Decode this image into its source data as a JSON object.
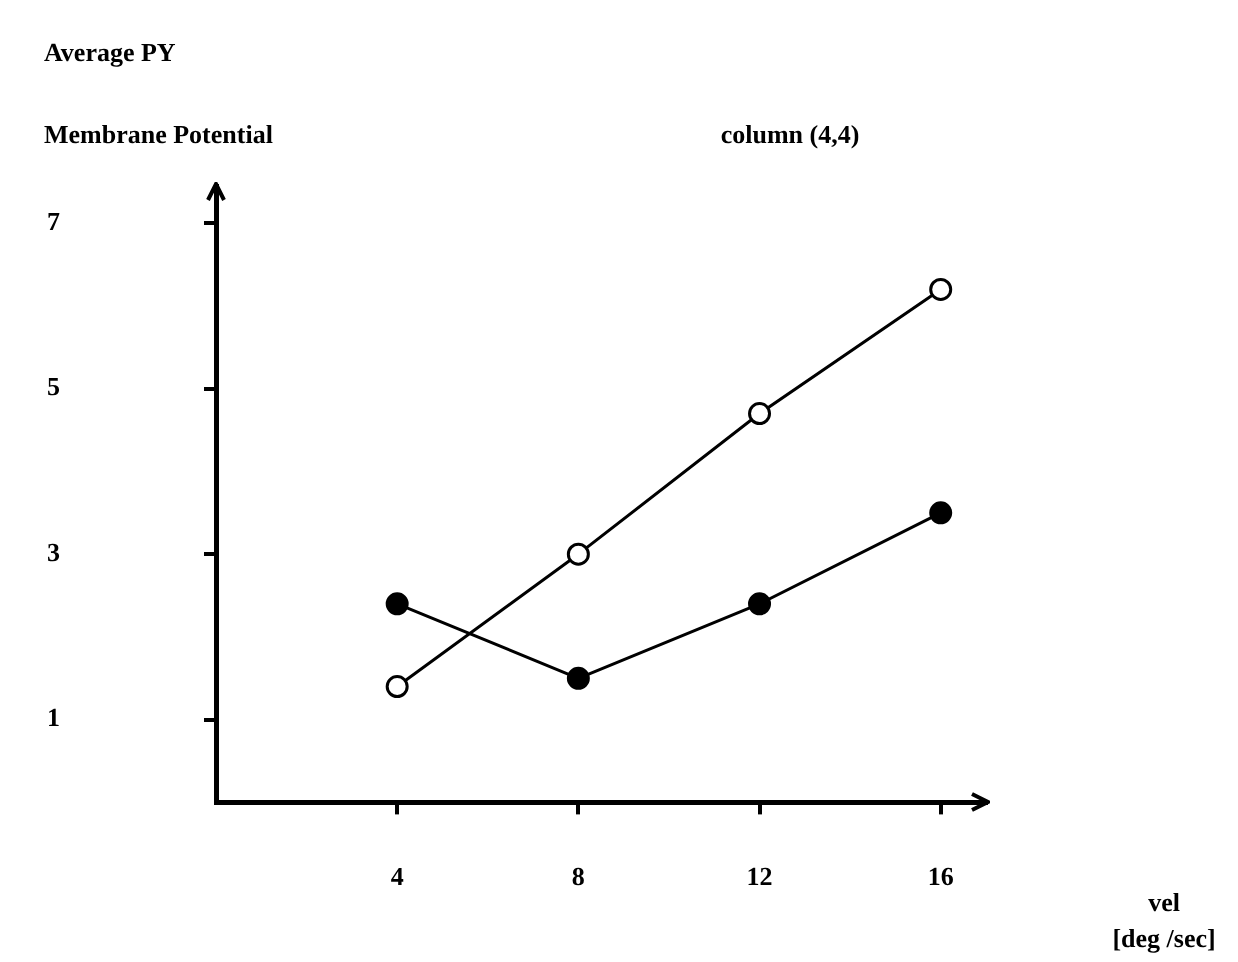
{
  "chart_data": {
    "type": "line",
    "title": "column (4,4)",
    "ylabel": "Average PY\nMembrane Potential",
    "xlabel": "vel\n[deg /sec]",
    "x": [
      4,
      8,
      12,
      16
    ],
    "series": [
      {
        "color": "#000000",
        "values": [
          1.4,
          3.0,
          4.7,
          6.2
        ]
      },
      {
        "color": "#000000",
        "values": [
          2.4,
          1.5,
          2.4,
          3.5
        ]
      }
    ],
    "xlim": [
      0,
      17
    ],
    "xticks": [
      4,
      8,
      12,
      16
    ],
    "ylim": [
      0,
      7.45
    ],
    "yticks": [
      1,
      3,
      5,
      7
    ],
    "grid": false,
    "legend": false,
    "marker": "circle",
    "line_style": "solid"
  }
}
